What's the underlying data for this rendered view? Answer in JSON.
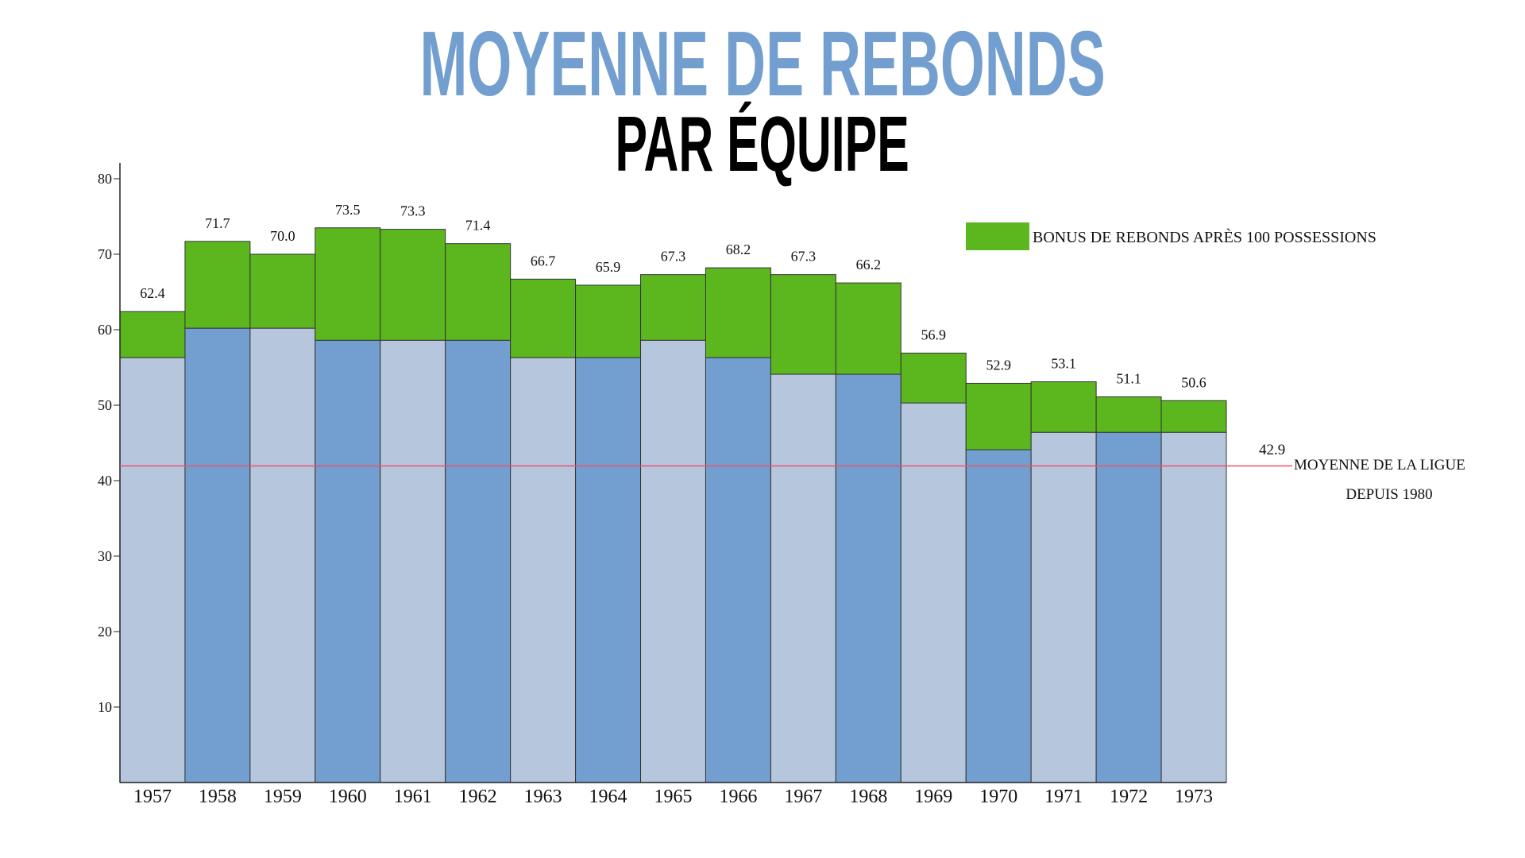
{
  "chart_data": {
    "type": "bar",
    "stacked": true,
    "title": "MOYENNE DE REBONDS",
    "subtitle": "PAR ÉQUIPE",
    "xlabel": "",
    "ylabel": "",
    "ylim": [
      0,
      80
    ],
    "yticks": [
      10,
      20,
      30,
      40,
      50,
      60,
      70,
      80
    ],
    "grid": false,
    "categories": [
      "1957",
      "1958",
      "1959",
      "1960",
      "1961",
      "1962",
      "1963",
      "1964",
      "1965",
      "1966",
      "1967",
      "1968",
      "1969",
      "1970",
      "1971",
      "1972",
      "1973"
    ],
    "base_values": [
      56.3,
      60.2,
      60.2,
      58.6,
      58.6,
      58.6,
      56.3,
      56.3,
      58.6,
      56.3,
      54.1,
      54.1,
      50.3,
      44.1,
      46.4,
      46.4,
      46.4
    ],
    "totals": [
      62.4,
      71.7,
      70.0,
      73.5,
      73.3,
      71.4,
      66.7,
      65.9,
      67.3,
      68.2,
      67.3,
      66.2,
      56.9,
      52.9,
      53.1,
      51.1,
      50.6
    ],
    "total_labels": [
      "62.4",
      "71.7",
      "70.0",
      "73.5",
      "73.3",
      "71.4",
      "66.7",
      "65.9",
      "67.3",
      "68.2",
      "67.3",
      "66.2",
      "56.9",
      "52.9",
      "53.1",
      "51.1",
      "50.6"
    ],
    "series": [
      {
        "name": "",
        "role": "base",
        "colors": [
          "#b6c7dd",
          "#729fcf"
        ]
      },
      {
        "name": "BONUS DE REBONDS APRÈS 100 POSSESSIONS",
        "role": "bonus",
        "color": "#5cb71f"
      }
    ],
    "legend_position": "top-right",
    "reference_line": {
      "value": 42.9,
      "value_label": "42.9",
      "label_line1": "MOYENNE DE LA LIGUE",
      "label_line2": "DEPUIS 1980",
      "color": "#f0506e"
    }
  }
}
